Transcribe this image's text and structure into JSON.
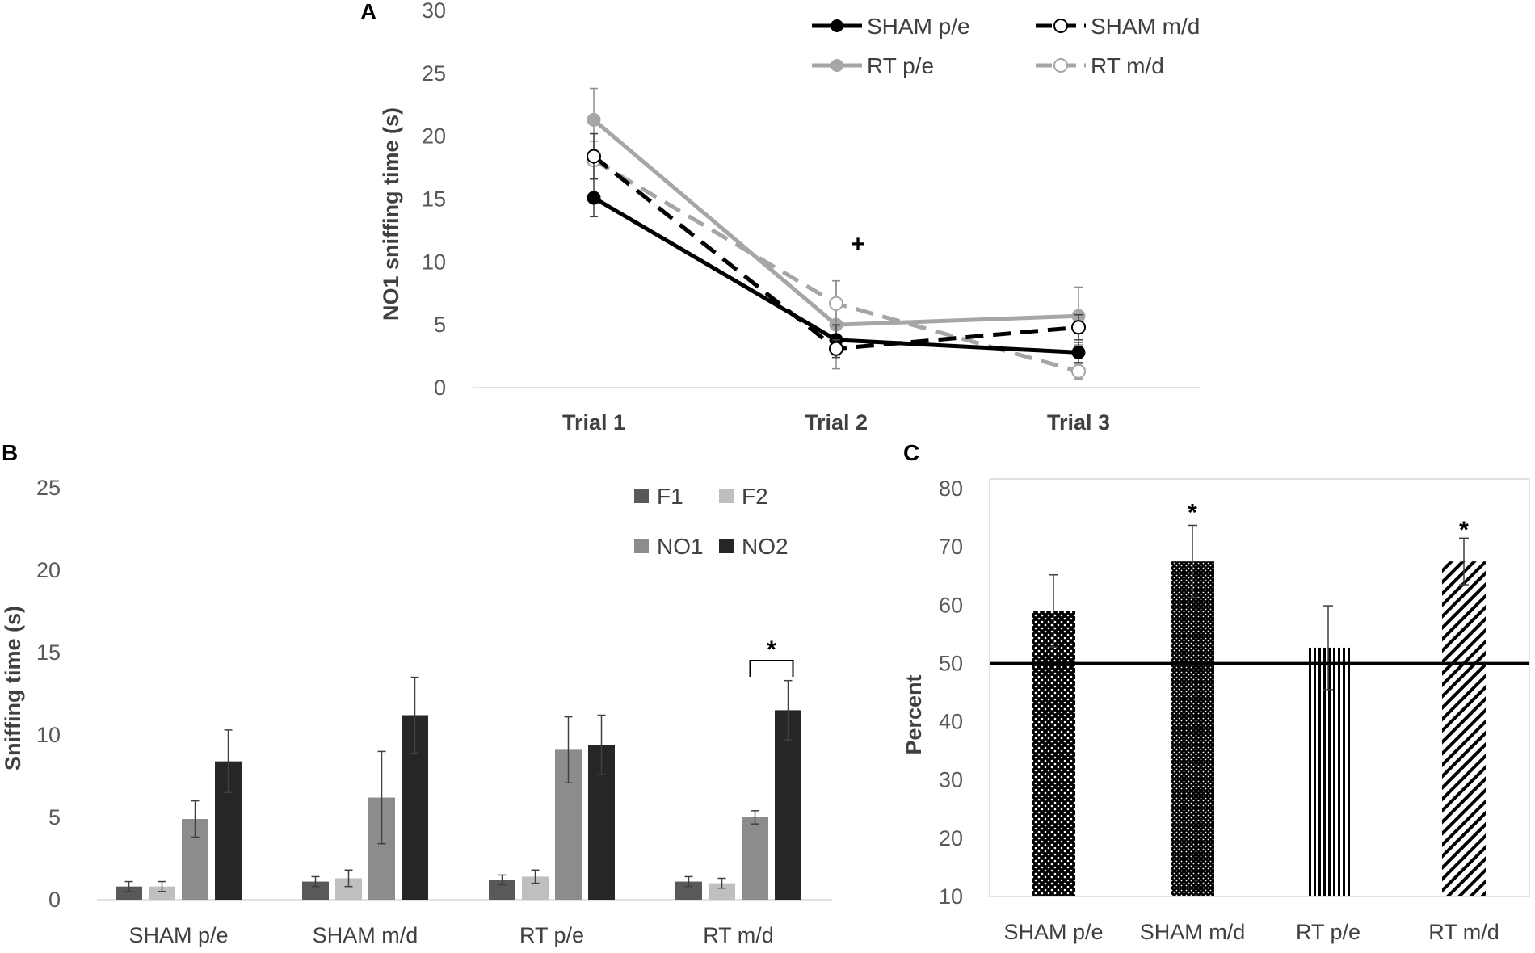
{
  "figure": {
    "panels": [
      "A",
      "B",
      "C"
    ]
  },
  "chart_data": [
    {
      "panel": "A",
      "type": "line",
      "title": "",
      "xlabel": "",
      "ylabel": "NO1 sniffing time (s)",
      "categories": [
        "Trial 1",
        "Trial 2",
        "Trial 3"
      ],
      "ylim": [
        0,
        30
      ],
      "yticks": [
        0,
        5,
        10,
        15,
        20,
        25,
        30
      ],
      "grid": false,
      "legend_position": "top-right",
      "series": [
        {
          "name": "SHAM p/e",
          "values": [
            15.1,
            3.8,
            2.8
          ],
          "errors": [
            1.5,
            1.2,
            0.8
          ],
          "color": "#000000",
          "line": "solid",
          "marker": "filled"
        },
        {
          "name": "SHAM m/d",
          "values": [
            18.4,
            3.1,
            4.8
          ],
          "errors": [
            1.8,
            0.7,
            1.0
          ],
          "color": "#000000",
          "line": "dashed",
          "marker": "open"
        },
        {
          "name": "RT p/e",
          "values": [
            21.3,
            5.0,
            5.7
          ],
          "errors": [
            2.5,
            3.5,
            2.3
          ],
          "color": "#a6a6a6",
          "line": "solid",
          "marker": "filled"
        },
        {
          "name": "RT m/d",
          "values": [
            18.1,
            6.7,
            1.3
          ],
          "errors": [
            1.5,
            1.8,
            0.6
          ],
          "color": "#a6a6a6",
          "line": "dashed",
          "marker": "open"
        }
      ],
      "annotations": [
        {
          "text": "+",
          "category": "Trial 2",
          "y": 11.5
        }
      ]
    },
    {
      "panel": "B",
      "type": "bar",
      "title": "",
      "xlabel": "",
      "ylabel": "Sniffing time (s)",
      "categories": [
        "SHAM p/e",
        "SHAM m/d",
        "RT p/e",
        "RT m/d"
      ],
      "ylim": [
        0,
        25
      ],
      "yticks": [
        0,
        5,
        10,
        15,
        20,
        25
      ],
      "grid": false,
      "legend_position": "top-right",
      "series": [
        {
          "name": "F1",
          "values": [
            0.8,
            1.1,
            1.2,
            1.1
          ],
          "errors": [
            0.3,
            0.3,
            0.3,
            0.3
          ],
          "color": "#595959"
        },
        {
          "name": "F2",
          "values": [
            0.8,
            1.3,
            1.4,
            1.0
          ],
          "errors": [
            0.3,
            0.5,
            0.4,
            0.3
          ],
          "color": "#bfbfbf"
        },
        {
          "name": "NO1",
          "values": [
            4.9,
            6.2,
            9.1,
            5.0
          ],
          "errors": [
            1.1,
            2.8,
            2.0,
            0.4
          ],
          "color": "#8c8c8c"
        },
        {
          "name": "NO2",
          "values": [
            8.4,
            11.2,
            9.4,
            11.5
          ],
          "errors": [
            1.9,
            2.3,
            1.8,
            1.8
          ],
          "color": "#262626"
        }
      ],
      "annotations": [
        {
          "text": "*",
          "category": "RT m/d",
          "between": [
            "NO1",
            "NO2"
          ],
          "y": 15.1
        }
      ]
    },
    {
      "panel": "C",
      "type": "bar",
      "title": "",
      "xlabel": "",
      "ylabel": "Percent",
      "categories": [
        "SHAM p/e",
        "SHAM m/d",
        "RT p/e",
        "RT m/d"
      ],
      "values": [
        59,
        67.5,
        52.7,
        67.5
      ],
      "errors": [
        6.2,
        6.2,
        7.2,
        4.0
      ],
      "patterns": [
        "dots-dense",
        "dots-fine",
        "vertical-stripes",
        "diagonal-stripes"
      ],
      "ylim": [
        10,
        80
      ],
      "yticks": [
        10,
        20,
        30,
        40,
        50,
        60,
        70,
        80
      ],
      "reference_line": 50,
      "grid": false,
      "annotations": [
        {
          "text": "*",
          "category": "SHAM m/d",
          "y": 76.5
        },
        {
          "text": "*",
          "category": "RT m/d",
          "y": 73.5
        }
      ]
    }
  ]
}
